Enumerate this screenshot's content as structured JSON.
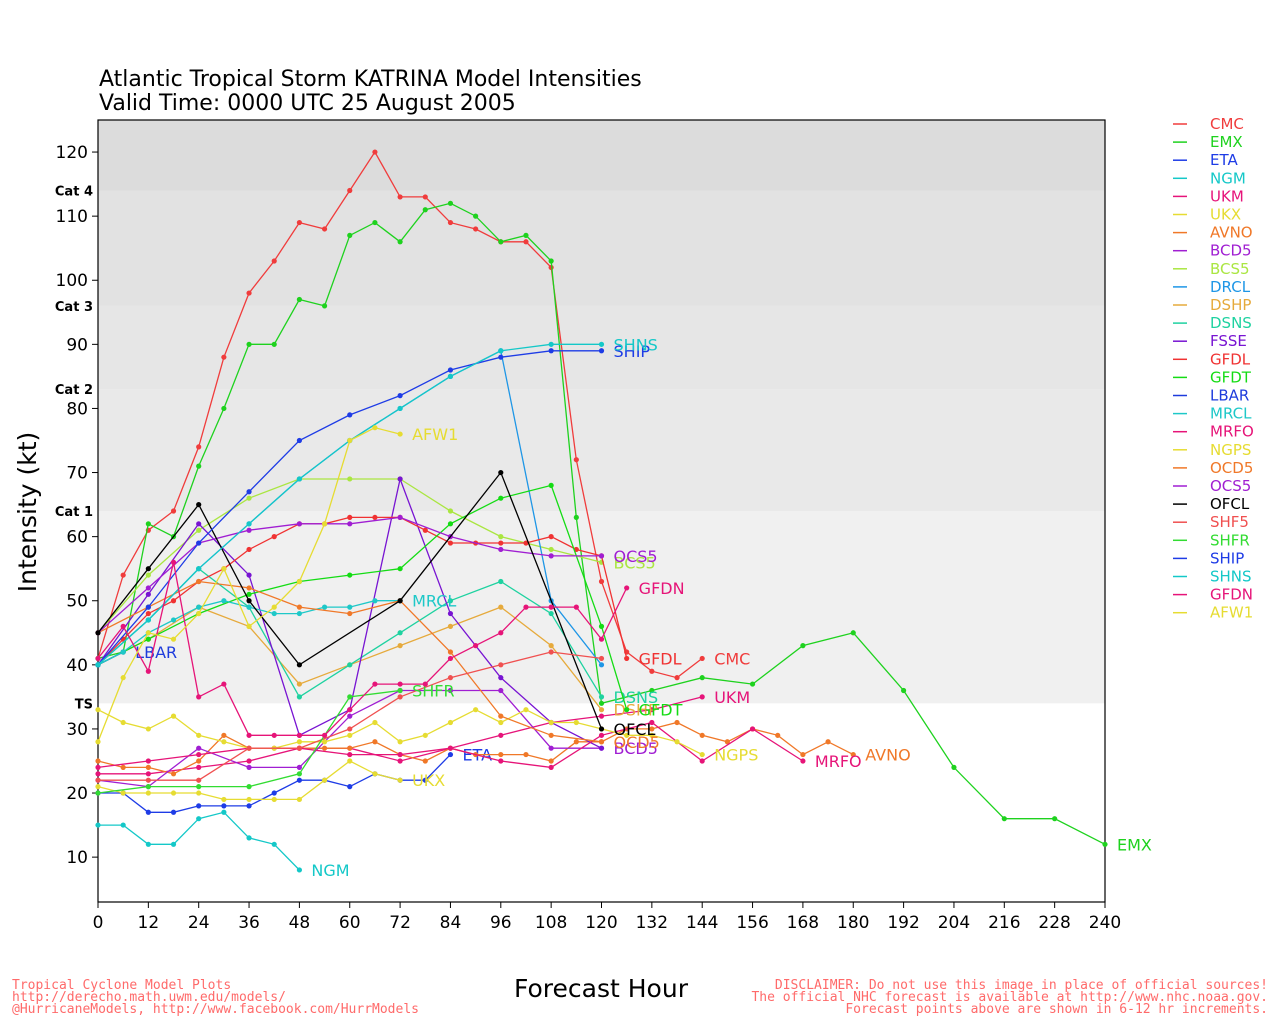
{
  "chart_data": {
    "type": "line",
    "title": "Atlantic Tropical Storm KATRINA Model Intensities",
    "subtitle": "Valid Time: 0000 UTC 25 August 2005",
    "xlabel": "Forecast Hour",
    "ylabel": "Intensity (kt)",
    "xlim": [
      0,
      240
    ],
    "ylim": [
      3,
      125
    ],
    "xticks": [
      0,
      12,
      24,
      36,
      48,
      60,
      72,
      84,
      96,
      108,
      120,
      132,
      144,
      156,
      168,
      180,
      192,
      204,
      216,
      228,
      240
    ],
    "yticks": [
      10,
      20,
      30,
      40,
      50,
      60,
      70,
      80,
      90,
      100,
      110,
      120
    ],
    "bands": [
      {
        "from": 34,
        "to": 64,
        "label": "TS",
        "color": "#f0f0f0"
      },
      {
        "from": 64,
        "to": 83,
        "label": "Cat 1",
        "color": "#e9e9e9"
      },
      {
        "from": 83,
        "to": 96,
        "label": "Cat 2",
        "color": "#e6e6e6"
      },
      {
        "from": 96,
        "to": 114,
        "label": "Cat 3",
        "color": "#e2e2e2"
      },
      {
        "from": 114,
        "to": 125,
        "label": "Cat 4",
        "color": "#dcdcdc"
      }
    ],
    "legend_position": "right",
    "series": [
      {
        "name": "CMC",
        "color": "#f03c3c",
        "end_label": "CMC",
        "x": [
          0,
          6,
          12,
          18,
          24,
          30,
          36,
          42,
          48,
          54,
          60,
          66,
          72,
          78,
          84,
          90,
          96,
          102,
          108,
          114,
          120,
          126,
          132,
          138,
          144
        ],
        "y": [
          41,
          54,
          61,
          64,
          74,
          88,
          98,
          103,
          109,
          108,
          114,
          120,
          113,
          113,
          109,
          108,
          106,
          106,
          102,
          72,
          53,
          42,
          39,
          38,
          41
        ]
      },
      {
        "name": "EMX",
        "color": "#1ed21e",
        "end_label": "EMX",
        "x": [
          0,
          6,
          12,
          18,
          24,
          30,
          36,
          42,
          48,
          54,
          60,
          66,
          72,
          78,
          84,
          90,
          96,
          102,
          108,
          114,
          120,
          132,
          144,
          156,
          168,
          180,
          192,
          204,
          216,
          228,
          240
        ],
        "y": [
          41,
          42,
          62,
          60,
          71,
          80,
          90,
          90,
          97,
          96,
          107,
          109,
          106,
          111,
          112,
          110,
          106,
          107,
          103,
          63,
          34,
          36,
          38,
          37,
          43,
          45,
          36,
          24,
          16,
          16,
          12
        ]
      },
      {
        "name": "ETA",
        "color": "#1e3ce6",
        "end_label": "ETA",
        "x": [
          0,
          6,
          12,
          18,
          24,
          30,
          36,
          42,
          48,
          54,
          60,
          66,
          72,
          78,
          84
        ],
        "y": [
          20,
          20,
          17,
          17,
          18,
          18,
          18,
          20,
          22,
          22,
          21,
          23,
          22,
          22,
          26
        ]
      },
      {
        "name": "NGM",
        "color": "#14c8c8",
        "end_label": "NGM",
        "x": [
          0,
          6,
          12,
          18,
          24,
          30,
          36,
          42,
          48
        ],
        "y": [
          15,
          15,
          12,
          12,
          16,
          17,
          13,
          12,
          8
        ]
      },
      {
        "name": "UKM",
        "color": "#e6147a",
        "end_label": "UKM",
        "x": [
          0,
          12,
          24,
          36,
          48,
          60,
          72,
          84,
          96,
          108,
          120,
          132,
          144
        ],
        "y": [
          23,
          23,
          24,
          25,
          27,
          27,
          25,
          27,
          29,
          31,
          32,
          33,
          35
        ]
      },
      {
        "name": "UKX",
        "color": "#e6dc32",
        "end_label": "UKX",
        "x": [
          0,
          6,
          12,
          18,
          24,
          30,
          36,
          42,
          48,
          54,
          60,
          66,
          72
        ],
        "y": [
          21,
          20,
          20,
          20,
          20,
          19,
          19,
          19,
          19,
          22,
          25,
          23,
          22
        ]
      },
      {
        "name": "AVNO",
        "color": "#f07828",
        "end_label": "AVNO",
        "x": [
          0,
          6,
          12,
          18,
          24,
          30,
          36,
          42,
          48,
          54,
          60,
          66,
          72,
          78,
          84,
          90,
          96,
          102,
          108,
          114,
          120,
          126,
          132,
          138,
          144,
          150,
          156,
          162,
          168,
          174,
          180
        ],
        "y": [
          25,
          24,
          24,
          23,
          25,
          29,
          27,
          27,
          27,
          27,
          27,
          28,
          26,
          25,
          27,
          26,
          26,
          26,
          25,
          28,
          28,
          30,
          30,
          31,
          29,
          28,
          30,
          29,
          26,
          28,
          26
        ]
      },
      {
        "name": "BCD5",
        "color": "#a01ed2",
        "end_label": "BCD5",
        "x": [
          0,
          12,
          24,
          36,
          48,
          60,
          72,
          84,
          96,
          108,
          120
        ],
        "y": [
          22,
          21,
          27,
          24,
          24,
          32,
          36,
          36,
          36,
          27,
          27
        ]
      },
      {
        "name": "BCS5",
        "color": "#aae641",
        "end_label": "BCS5",
        "x": [
          0,
          12,
          24,
          36,
          48,
          60,
          72,
          84,
          96,
          108,
          120
        ],
        "y": [
          45,
          54,
          61,
          66,
          69,
          69,
          69,
          64,
          60,
          58,
          56
        ]
      },
      {
        "name": "DRCL",
        "color": "#1e96e6",
        "end_label": "",
        "x": [
          0,
          12,
          24,
          36,
          48,
          60,
          72,
          84,
          96,
          108,
          120
        ],
        "y": [
          40,
          47,
          55,
          62,
          69,
          75,
          80,
          85,
          89,
          50,
          40
        ]
      },
      {
        "name": "DSHP",
        "color": "#e6aa3c",
        "end_label": "DSHP",
        "x": [
          0,
          12,
          24,
          36,
          48,
          60,
          72,
          84,
          96,
          108,
          120
        ],
        "y": [
          40,
          44,
          49,
          46,
          37,
          40,
          43,
          46,
          49,
          43,
          33
        ]
      },
      {
        "name": "DSNS",
        "color": "#1ed2a0",
        "end_label": "DSNS",
        "x": [
          0,
          12,
          24,
          36,
          48,
          60,
          72,
          84,
          96,
          108,
          120
        ],
        "y": [
          40,
          47,
          55,
          49,
          35,
          40,
          45,
          50,
          53,
          48,
          35
        ]
      },
      {
        "name": "FSSE",
        "color": "#7814d2",
        "end_label": "",
        "x": [
          0,
          12,
          24,
          36,
          48,
          60,
          72,
          84,
          96,
          108,
          120
        ],
        "y": [
          40,
          51,
          62,
          54,
          29,
          33,
          69,
          48,
          38,
          31,
          27
        ]
      },
      {
        "name": "GFDL",
        "color": "#f03232",
        "end_label": "GFDL",
        "x": [
          0,
          6,
          12,
          18,
          24,
          30,
          36,
          42,
          48,
          54,
          60,
          66,
          72,
          78,
          84,
          90,
          96,
          102,
          108,
          114,
          120,
          126
        ],
        "y": [
          40,
          44,
          48,
          50,
          53,
          55,
          58,
          60,
          62,
          62,
          63,
          63,
          63,
          61,
          59,
          59,
          59,
          59,
          60,
          58,
          57,
          41
        ]
      },
      {
        "name": "GFDT",
        "color": "#14dc14",
        "end_label": "GFDT",
        "x": [
          0,
          12,
          24,
          36,
          48,
          60,
          72,
          84,
          96,
          108,
          120,
          126
        ],
        "y": [
          40,
          44,
          48,
          51,
          53,
          54,
          55,
          62,
          66,
          68,
          46,
          33
        ]
      },
      {
        "name": "LBAR",
        "color": "#1e3cdc",
        "end_label": "LBAR",
        "x": [
          0,
          6
        ],
        "y": [
          40,
          42
        ]
      },
      {
        "name": "MRCL",
        "color": "#1ec8c8",
        "end_label": "MRCL",
        "x": [
          0,
          6,
          12,
          18,
          24,
          30,
          36,
          42,
          48,
          54,
          60,
          66,
          72
        ],
        "y": [
          40,
          42,
          45,
          47,
          49,
          50,
          49,
          48,
          48,
          49,
          49,
          50,
          50
        ]
      },
      {
        "name": "MRFO",
        "color": "#e61478",
        "end_label": "MRFO",
        "x": [
          0,
          12,
          24,
          36,
          48,
          60,
          72,
          84,
          96,
          108,
          120,
          132,
          144,
          156,
          168
        ],
        "y": [
          24,
          25,
          26,
          27,
          27,
          26,
          26,
          27,
          25,
          24,
          29,
          31,
          25,
          30,
          25
        ]
      },
      {
        "name": "NGPS",
        "color": "#e6dc32",
        "end_label": "NGPS",
        "x": [
          0,
          6,
          12,
          18,
          24,
          30,
          36,
          42,
          48,
          54,
          60,
          66,
          72,
          78,
          84,
          90,
          96,
          102,
          108,
          114,
          120,
          126,
          132,
          138,
          144
        ],
        "y": [
          33,
          31,
          30,
          32,
          29,
          28,
          27,
          27,
          28,
          28,
          29,
          31,
          28,
          29,
          31,
          33,
          31,
          33,
          31,
          31,
          30,
          29,
          29,
          28,
          26
        ]
      },
      {
        "name": "OCD5",
        "color": "#f07828",
        "end_label": "OCD5",
        "x": [
          0,
          12,
          24,
          36,
          48,
          60,
          72,
          84,
          96,
          108,
          120
        ],
        "y": [
          45,
          49,
          53,
          52,
          49,
          48,
          50,
          42,
          32,
          29,
          28
        ]
      },
      {
        "name": "OCS5",
        "color": "#a01ed2",
        "end_label": "OCS5",
        "x": [
          0,
          12,
          24,
          36,
          48,
          60,
          72,
          84,
          96,
          108,
          120
        ],
        "y": [
          45,
          52,
          59,
          61,
          62,
          62,
          63,
          60,
          58,
          57,
          57
        ]
      },
      {
        "name": "OFCL",
        "color": "#000000",
        "end_label": "OFCL",
        "x": [
          0,
          12,
          24,
          36,
          48,
          72,
          96,
          120
        ],
        "y": [
          45,
          55,
          65,
          50,
          40,
          50,
          70,
          30
        ]
      },
      {
        "name": "SHF5",
        "color": "#f05050",
        "end_label": "",
        "x": [
          0,
          12,
          24,
          36,
          48,
          60,
          72,
          84,
          96,
          108,
          120
        ],
        "y": [
          22,
          22,
          22,
          27,
          27,
          30,
          35,
          38,
          40,
          42,
          41
        ]
      },
      {
        "name": "SHFR",
        "color": "#32dc32",
        "end_label": "SHFR",
        "x": [
          0,
          12,
          24,
          36,
          48,
          60,
          72
        ],
        "y": [
          20,
          21,
          21,
          21,
          23,
          35,
          36
        ]
      },
      {
        "name": "SHIP",
        "color": "#1e3ce6",
        "end_label": "SHIP",
        "x": [
          0,
          12,
          24,
          36,
          48,
          60,
          72,
          84,
          96,
          108,
          120
        ],
        "y": [
          40,
          49,
          59,
          67,
          75,
          79,
          82,
          86,
          88,
          89,
          89
        ]
      },
      {
        "name": "SHNS",
        "color": "#14c8c8",
        "end_label": "SHNS",
        "x": [
          0,
          12,
          24,
          36,
          48,
          60,
          72,
          84,
          96,
          108,
          120
        ],
        "y": [
          40,
          47,
          55,
          62,
          69,
          75,
          80,
          85,
          89,
          90,
          90
        ]
      },
      {
        "name": "GFDN",
        "color": "#e61478",
        "end_label": "GFDN",
        "x": [
          0,
          6,
          12,
          18,
          24,
          30,
          36,
          42,
          48,
          54,
          60,
          66,
          72,
          78,
          84,
          90,
          96,
          102,
          108,
          114,
          120,
          126
        ],
        "y": [
          41,
          46,
          39,
          56,
          35,
          37,
          29,
          29,
          29,
          29,
          33,
          37,
          37,
          37,
          41,
          43,
          45,
          49,
          49,
          49,
          44,
          52
        ]
      },
      {
        "name": "AFW1",
        "color": "#e6dc32",
        "end_label": "AFW1",
        "x": [
          0,
          6,
          12,
          18,
          24,
          30,
          36,
          42,
          48,
          54,
          60,
          66,
          72
        ],
        "y": [
          28,
          38,
          45,
          44,
          48,
          55,
          46,
          49,
          53,
          62,
          75,
          77,
          76
        ]
      }
    ]
  },
  "footer": {
    "left": [
      "Tropical Cyclone Model Plots",
      "http://derecho.math.uwm.edu/models/",
      "@HurricaneModels, http://www.facebook.com/HurrModels"
    ],
    "right": [
      "DISCLAIMER: Do not use this image in place of official sources!",
      "The official NHC forecast is available at http://www.nhc.noaa.gov.",
      "Forecast points above are shown in 6-12 hr increments."
    ]
  }
}
